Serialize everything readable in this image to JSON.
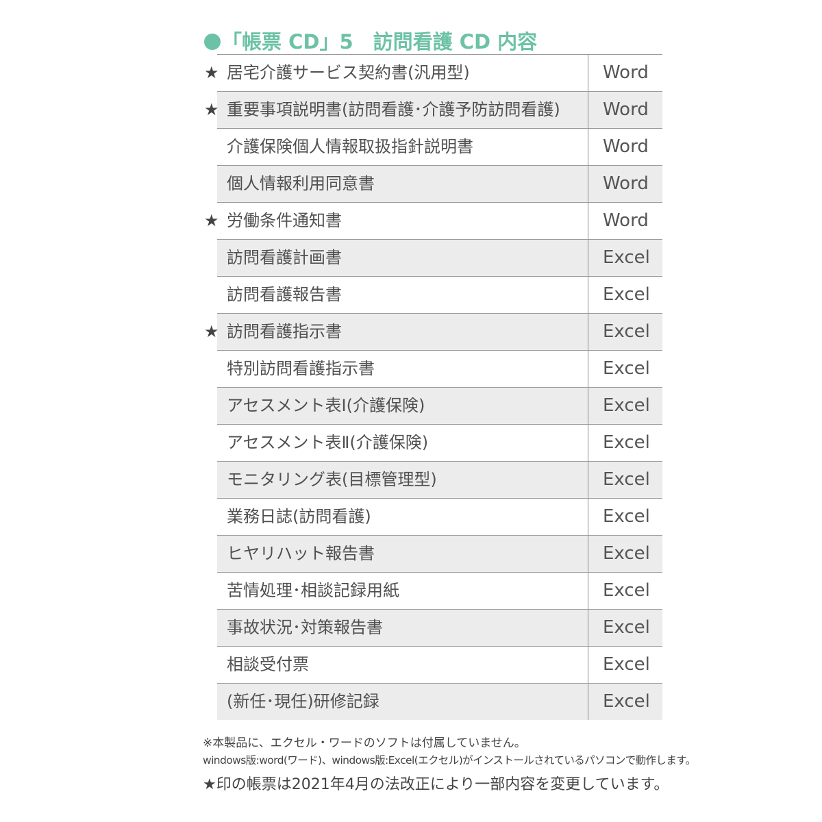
{
  "title": "「帳票 CD」5　訪問看護 CD 内容",
  "accent_color": "#6cc2a6",
  "star_symbol": "★",
  "items": [
    {
      "name": "居宅介護サービス契約書(汎用型)",
      "format": "Word",
      "starred": true
    },
    {
      "name": "重要事項説明書(訪問看護･介護予防訪問看護)",
      "format": "Word",
      "starred": true
    },
    {
      "name": "介護保険個人情報取扱指針説明書",
      "format": "Word",
      "starred": false
    },
    {
      "name": "個人情報利用同意書",
      "format": "Word",
      "starred": false
    },
    {
      "name": "労働条件通知書",
      "format": "Word",
      "starred": true
    },
    {
      "name": "訪問看護計画書",
      "format": "Excel",
      "starred": false
    },
    {
      "name": "訪問看護報告書",
      "format": "Excel",
      "starred": false
    },
    {
      "name": "訪問看護指示書",
      "format": "Excel",
      "starred": true
    },
    {
      "name": "特別訪問看護指示書",
      "format": "Excel",
      "starred": false
    },
    {
      "name": "アセスメント表Ⅰ(介護保険)",
      "format": "Excel",
      "starred": false
    },
    {
      "name": "アセスメント表Ⅱ(介護保険)",
      "format": "Excel",
      "starred": false
    },
    {
      "name": "モニタリング表(目標管理型)",
      "format": "Excel",
      "starred": false
    },
    {
      "name": "業務日誌(訪問看護)",
      "format": "Excel",
      "starred": false
    },
    {
      "name": "ヒヤリハット報告書",
      "format": "Excel",
      "starred": false
    },
    {
      "name": "苦情処理･相談記録用紙",
      "format": "Excel",
      "starred": false
    },
    {
      "name": "事故状況･対策報告書",
      "format": "Excel",
      "starred": false
    },
    {
      "name": "相談受付票",
      "format": "Excel",
      "starred": false
    },
    {
      "name": "(新任･現任)研修記録",
      "format": "Excel",
      "starred": false
    }
  ],
  "notes": {
    "line1": "※本製品に、エクセル・ワードのソフトは付属していません。",
    "line2": "windows版:word(ワード)、windows版:Excel(エクセル)がインストールされているパソコンで動作します。",
    "line3": "★印の帳票は2021年4月の法改正により一部内容を変更しています。"
  }
}
